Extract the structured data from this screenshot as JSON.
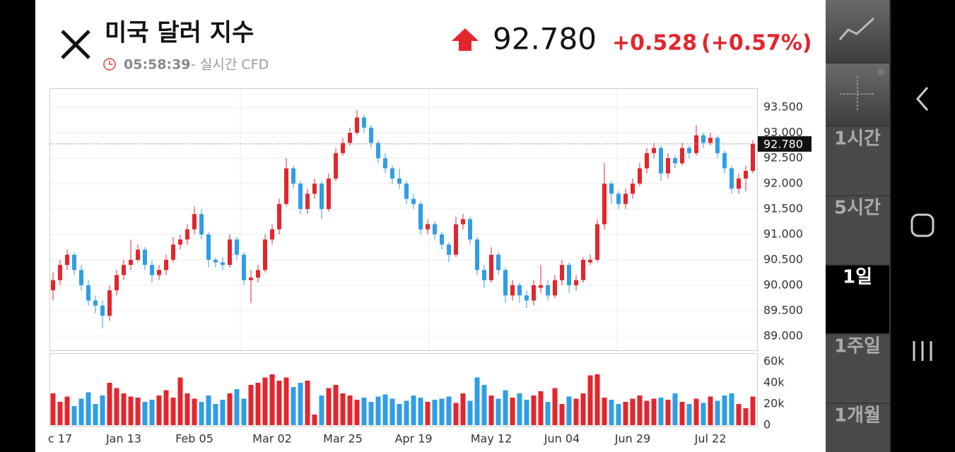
{
  "header": {
    "title": "미국 달러 지수",
    "time": "05:58:39",
    "source": "- 실시간 CFD",
    "change": "+0.528",
    "change_pct": "(+0.57%)"
  },
  "sidebar": {
    "buttons": [
      "1시간",
      "5시간",
      "1일",
      "1주일",
      "1개월"
    ],
    "active": 2
  },
  "chart_data": [
    {
      "type": "candlestick",
      "up_color": "#e3262d",
      "down_color": "#2f9ee6",
      "grid": true,
      "ylim": [
        88.72,
        93.875
      ],
      "yticks": [
        {
          "value": 89.0,
          "label": "89.000"
        },
        {
          "value": 89.5,
          "label": "89.500"
        },
        {
          "value": 90.0,
          "label": "90.000"
        },
        {
          "value": 90.5,
          "label": "90.500"
        },
        {
          "value": 91.0,
          "label": "91.000"
        },
        {
          "value": 91.5,
          "label": "91.500"
        },
        {
          "value": 92.0,
          "label": "92.000"
        },
        {
          "value": 92.5,
          "label": "92.500"
        },
        {
          "value": 93.0,
          "label": "93.000"
        },
        {
          "value": 93.5,
          "label": "93.500"
        }
      ],
      "current_price": {
        "value": 92.78,
        "label": "92.780"
      },
      "open": [
        89.9,
        90.1,
        90.4,
        90.6,
        90.3,
        90.0,
        89.7,
        89.6,
        89.4,
        89.9,
        90.2,
        90.4,
        90.5,
        90.7,
        90.4,
        90.2,
        90.3,
        90.5,
        90.8,
        90.9,
        91.1,
        91.4,
        91.0,
        90.5,
        90.45,
        90.4,
        90.9,
        90.6,
        90.1,
        90.15,
        90.3,
        90.9,
        91.1,
        91.6,
        92.3,
        92.0,
        91.5,
        91.8,
        92.0,
        91.5,
        92.1,
        92.6,
        92.8,
        93.0,
        93.3,
        93.1,
        92.8,
        92.5,
        92.3,
        92.1,
        92.0,
        91.7,
        91.6,
        91.1,
        91.2,
        91.0,
        90.8,
        90.6,
        91.2,
        91.3,
        90.9,
        90.3,
        90.1,
        90.6,
        90.3,
        89.8,
        90.0,
        89.8,
        89.7,
        89.95,
        90.0,
        89.8,
        90.1,
        90.4,
        90.0,
        90.1,
        90.45,
        90.5,
        91.2,
        92.0,
        91.8,
        91.6,
        91.8,
        92.0,
        92.3,
        92.6,
        92.7,
        92.2,
        92.5,
        92.4,
        92.7,
        92.6,
        92.95,
        92.8,
        92.9,
        92.6,
        92.3,
        91.9,
        92.1,
        92.25
      ],
      "high": [
        90.25,
        90.5,
        90.7,
        90.65,
        90.4,
        90.1,
        89.8,
        89.7,
        90.0,
        90.3,
        90.5,
        90.9,
        90.8,
        90.75,
        90.5,
        90.4,
        90.6,
        90.95,
        91.0,
        91.2,
        91.55,
        91.5,
        91.05,
        90.55,
        90.55,
        91.0,
        90.95,
        90.65,
        90.3,
        90.4,
        91.0,
        91.2,
        91.7,
        92.5,
        92.35,
        92.05,
        91.9,
        92.1,
        92.05,
        92.2,
        92.7,
        92.9,
        93.1,
        93.45,
        93.35,
        93.15,
        92.85,
        92.6,
        92.35,
        92.3,
        92.05,
        91.8,
        91.65,
        91.3,
        91.25,
        91.05,
        90.85,
        91.35,
        91.4,
        91.35,
        90.95,
        90.4,
        90.75,
        90.65,
        90.35,
        90.1,
        90.05,
        89.9,
        90.1,
        90.4,
        90.1,
        90.2,
        90.5,
        90.45,
        90.2,
        90.55,
        90.6,
        91.3,
        92.4,
        92.05,
        91.85,
        91.9,
        92.1,
        92.4,
        92.7,
        92.8,
        92.75,
        92.6,
        92.55,
        92.8,
        92.75,
        93.15,
        93.0,
        93.0,
        92.95,
        92.65,
        92.35,
        92.2,
        92.35,
        92.85
      ],
      "low": [
        89.7,
        90.0,
        90.3,
        90.2,
        89.9,
        89.6,
        89.45,
        89.15,
        89.3,
        89.8,
        90.1,
        90.3,
        90.45,
        90.3,
        90.05,
        90.1,
        90.2,
        90.45,
        90.7,
        90.8,
        91.0,
        90.9,
        90.35,
        90.35,
        90.3,
        90.35,
        90.5,
        90.0,
        89.65,
        90.05,
        90.25,
        90.8,
        91.0,
        91.55,
        91.9,
        91.4,
        91.4,
        91.7,
        91.3,
        91.45,
        92.05,
        92.55,
        92.75,
        92.95,
        93.0,
        92.7,
        92.4,
        92.2,
        92.0,
        91.9,
        91.6,
        91.5,
        91.0,
        91.0,
        90.9,
        90.7,
        90.45,
        90.55,
        91.1,
        90.8,
        90.2,
        89.95,
        90.05,
        90.2,
        89.65,
        89.7,
        89.65,
        89.55,
        89.6,
        89.85,
        89.7,
        89.75,
        90.0,
        89.85,
        89.9,
        90.05,
        90.4,
        90.45,
        91.1,
        91.6,
        91.5,
        91.5,
        91.7,
        91.95,
        92.2,
        92.5,
        92.05,
        92.1,
        92.3,
        92.35,
        92.5,
        92.55,
        92.7,
        92.75,
        92.5,
        92.2,
        91.8,
        91.8,
        91.85,
        92.2
      ],
      "close": [
        90.1,
        90.4,
        90.6,
        90.3,
        90.0,
        89.7,
        89.6,
        89.4,
        89.9,
        90.2,
        90.4,
        90.5,
        90.7,
        90.4,
        90.2,
        90.3,
        90.5,
        90.8,
        90.9,
        91.1,
        91.4,
        91.0,
        90.5,
        90.45,
        90.4,
        90.9,
        90.6,
        90.1,
        90.15,
        90.3,
        90.9,
        91.1,
        91.6,
        92.3,
        92.0,
        91.5,
        91.8,
        92.0,
        91.5,
        92.1,
        92.6,
        92.8,
        93.0,
        93.3,
        93.1,
        92.8,
        92.5,
        92.3,
        92.1,
        92.0,
        91.7,
        91.6,
        91.1,
        91.2,
        91.0,
        90.8,
        90.6,
        91.2,
        91.3,
        90.9,
        90.3,
        90.1,
        90.6,
        90.3,
        89.8,
        90.0,
        89.8,
        89.7,
        90.0,
        90.0,
        89.8,
        90.1,
        90.4,
        90.0,
        90.1,
        90.5,
        90.5,
        91.2,
        92.0,
        91.8,
        91.6,
        91.8,
        92.0,
        92.3,
        92.6,
        92.7,
        92.2,
        92.5,
        92.4,
        92.7,
        92.6,
        92.95,
        92.8,
        92.9,
        92.6,
        92.3,
        91.9,
        92.1,
        92.25,
        92.78
      ]
    },
    {
      "type": "bar",
      "up_color": "#e3262d",
      "down_color": "#2f9ee6",
      "ylim": [
        0,
        68000
      ],
      "yticks": [
        0,
        {
          "value": 20000,
          "label": "20k"
        },
        {
          "value": 40000,
          "label": "40k"
        },
        {
          "value": 60000,
          "label": "60k"
        }
      ],
      "categories": [
        null,
        "c 17",
        null,
        null,
        null,
        null,
        null,
        null,
        null,
        null,
        "Jan 13",
        null,
        null,
        null,
        null,
        null,
        null,
        null,
        null,
        null,
        "Feb 05",
        null,
        null,
        null,
        null,
        null,
        null,
        null,
        null,
        null,
        null,
        "Mar 02",
        null,
        null,
        null,
        null,
        null,
        null,
        null,
        null,
        null,
        "Mar 25",
        null,
        null,
        null,
        null,
        null,
        null,
        null,
        null,
        null,
        "Apr 19",
        null,
        null,
        null,
        null,
        null,
        null,
        null,
        null,
        null,
        null,
        "May 12",
        null,
        null,
        null,
        null,
        null,
        null,
        null,
        null,
        null,
        "Jun 04",
        null,
        null,
        null,
        null,
        null,
        null,
        null,
        null,
        null,
        "Jun 29",
        null,
        null,
        null,
        null,
        null,
        null,
        null,
        null,
        null,
        null,
        "Jul 22",
        null,
        null,
        null,
        null,
        null,
        null
      ],
      "values": [
        30000,
        22000,
        27000,
        18000,
        25000,
        31000,
        20000,
        28000,
        40000,
        35000,
        30000,
        27000,
        26000,
        22000,
        24000,
        28000,
        33000,
        26000,
        45000,
        30000,
        25000,
        22000,
        28000,
        20000,
        24000,
        30000,
        34000,
        25000,
        38000,
        40000,
        45000,
        48000,
        42000,
        45000,
        36000,
        40000,
        42000,
        10000,
        28000,
        35000,
        38000,
        30000,
        28000,
        24000,
        26000,
        22000,
        27000,
        29000,
        25000,
        20000,
        23000,
        28000,
        26000,
        22000,
        24000,
        25000,
        27000,
        21000,
        30000,
        23000,
        45000,
        38000,
        28000,
        25000,
        33000,
        26000,
        30000,
        24000,
        28000,
        32000,
        22000,
        35000,
        20000,
        27000,
        25000,
        30000,
        47000,
        48000,
        26000,
        24000,
        20000,
        22000,
        25000,
        28000,
        23000,
        25000,
        26000,
        24000,
        30000,
        22000,
        20000,
        25000,
        21000,
        27000,
        23000,
        28000,
        30000,
        20000,
        16000,
        27000
      ]
    }
  ]
}
